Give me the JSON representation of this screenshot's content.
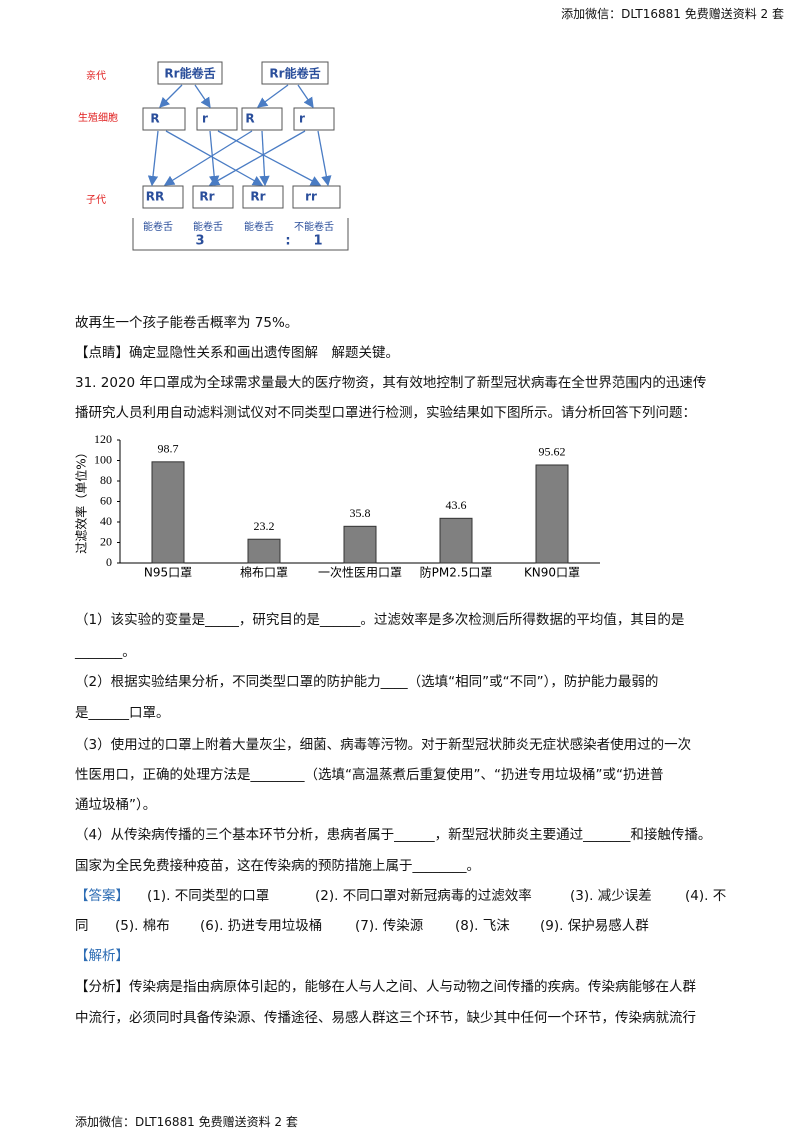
{
  "header": "添加微信：DLT16881 免费赠送资料 2 套",
  "diagram": {
    "row_labels": [
      "亲代",
      "生殖细胞",
      "子代"
    ],
    "parents": [
      "Rr能卷舌",
      "Rr能卷舌"
    ],
    "gametes": [
      "R",
      "r",
      "R",
      "r"
    ],
    "offspring": [
      "RR",
      "Rr",
      "Rr",
      "rr"
    ],
    "phenotypes": [
      "能卷舌",
      "能卷舌",
      "能卷舌",
      "不能卷舌"
    ],
    "ratio": [
      "3",
      ":",
      "1"
    ]
  },
  "intro_lines": [
    "故再生一个孩子能卷舌概率为 75%。",
    "【点睛】确定显隐性关系和画出遗传图解　解题关键。",
    "31. 2020 年口罩成为全球需求量最大的医疗物资，其有效地控制了新型冠状病毒在全世界范围内的迅速传",
    "播研究人员利用自动滤料测试仪对不同类型口罩进行检测，实验结果如下图所示。请分析回答下列问题："
  ],
  "chart_data": {
    "type": "bar",
    "y_label": "过滤效率（单位%）",
    "categories": [
      "N95口罩",
      "棉布口罩",
      "一次性医用口罩",
      "防PM2.5口罩",
      "KN90口罩"
    ],
    "values": [
      98.7,
      23.2,
      35.8,
      43.6,
      95.62
    ],
    "color": "#808080",
    "ylim": [
      0,
      120
    ],
    "yticks": [
      0,
      20,
      40,
      60,
      80,
      100,
      120
    ]
  },
  "question_lines": [
    "（1）该实验的变量是_____，研究目的是______。过滤效率是多次检测后所得数据的平均值，其目的是",
    "_______。",
    "（2）根据实验结果分析，不同类型口罩的防护能力____（选填“相同”或“不同”），防护能力最弱的",
    "是______口罩。",
    "（3）使用过的口罩上附着大量灰尘，细菌、病毒等污物。对于新型冠状肺炎无症状感染者使用过的一次",
    "性医用口，正确的处理方法是________（选填“高温蒸煮后重复使用”、“扔进专用垃圾桶”或“扔进普",
    "通垃圾桶”）。",
    "（4）从传染病传播的三个基本环节分析，患病者属于______，新型冠状肺炎主要通过_______和接触传播。",
    "国家为全民免费接种疫苗，这在传染病的预防措施上属于________。"
  ],
  "answer_label": "【答案】",
  "answer_lines": [
    [
      "(1). 不同类型的口罩",
      "(2). 不同口罩对新冠病毒的过滤效率",
      "(3). 减少误差",
      "(4). 不"
    ],
    [
      "同",
      "(5). 棉布",
      "(6). 扔进专用垃圾桶",
      "(7). 传染源",
      "(8). 飞沫",
      "(9). 保护易感人群"
    ]
  ],
  "analysis_label": "【解析】",
  "analysis_lines": [
    "【分析】传染病是指由病原体引起的，能够在人与人之间、人与动物之间传播的疾病。传染病能够在人群",
    "中流行，必须同时具备传染源、传播途径、易感人群这三个环节，缺少其中任何一个环节，传染病就流行"
  ],
  "footer": "添加微信：DLT16881 免费赠送资料 2 套"
}
